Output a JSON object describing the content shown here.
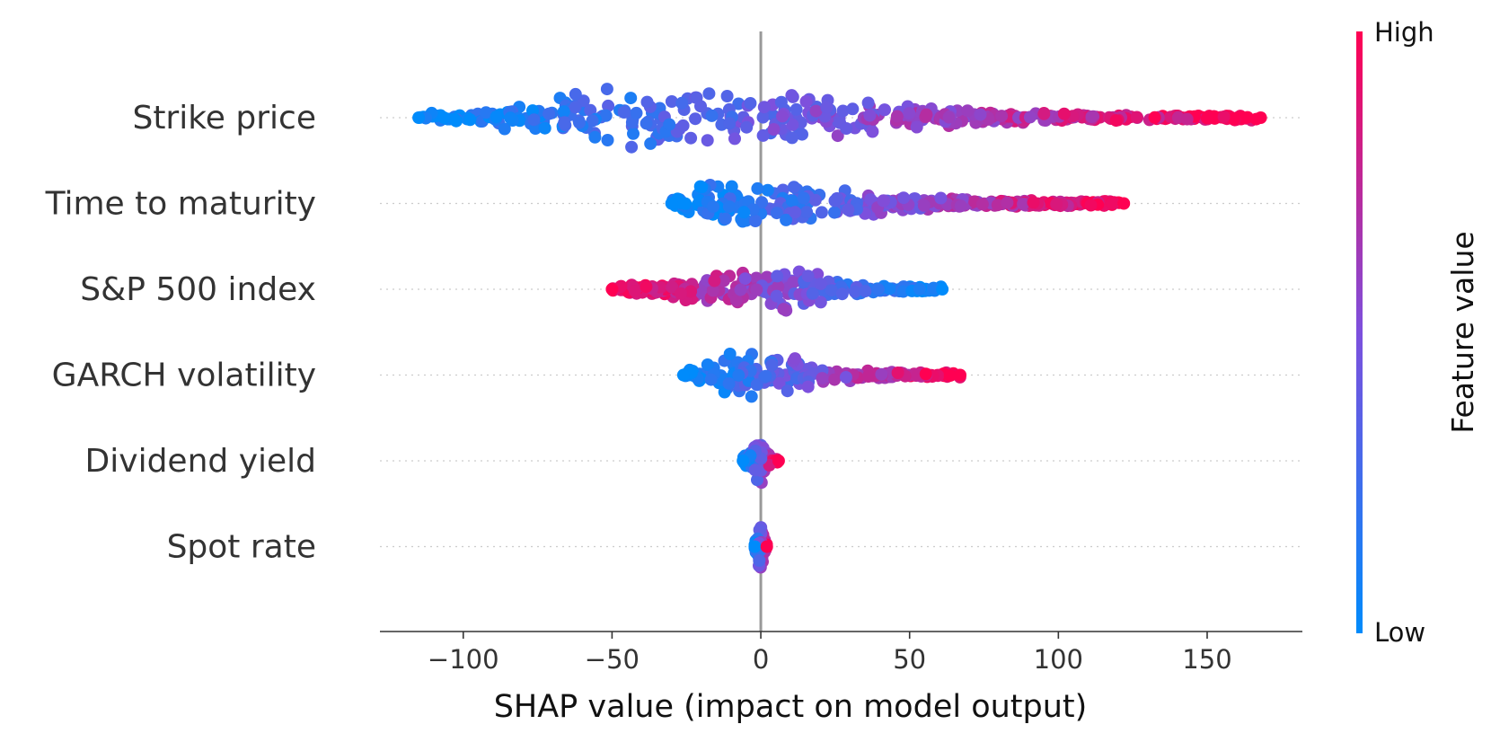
{
  "chart_data": {
    "type": "scatter",
    "subtype": "shap-beeswarm",
    "title": "",
    "xlabel": "SHAP value (impact on model output)",
    "ylabel": "",
    "xlim": [
      -128,
      182
    ],
    "xticks": [
      -100,
      -50,
      0,
      50,
      100,
      150
    ],
    "xtick_labels": [
      "−100",
      "−50",
      "0",
      "50",
      "100",
      "150"
    ],
    "colorbar": {
      "label": "Feature value",
      "high_label": "High",
      "low_label": "Low",
      "low_color": "#008bfb",
      "high_color": "#ff0052"
    },
    "features": [
      {
        "name": "Strike price",
        "min": -115,
        "max": 168,
        "peak": -38,
        "width": 34,
        "value_direction": "positive"
      },
      {
        "name": "Time to maturity",
        "min": -30,
        "max": 122,
        "peak": -16,
        "width": 26,
        "value_direction": "positive"
      },
      {
        "name": "S&P 500 index",
        "min": -50,
        "max": 61,
        "peak": 5,
        "width": 23,
        "value_direction": "negative"
      },
      {
        "name": "GARCH volatility",
        "min": -26,
        "max": 67,
        "peak": -8,
        "width": 24,
        "value_direction": "positive"
      },
      {
        "name": "Dividend yield",
        "min": -6,
        "max": 6,
        "peak": 0,
        "width": 27,
        "value_direction": "positive"
      },
      {
        "name": "Spot rate",
        "min": -2,
        "max": 2,
        "peak": 0,
        "width": 28,
        "value_direction": "positive"
      }
    ]
  }
}
